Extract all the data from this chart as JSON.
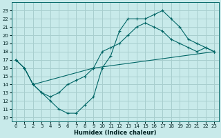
{
  "xlabel": "Humidex (Indice chaleur)",
  "bg_color": "#c8eaea",
  "grid_color": "#a8cece",
  "line_color": "#006666",
  "xlim": [
    -0.5,
    23.5
  ],
  "ylim": [
    9.5,
    24.0
  ],
  "xticks": [
    0,
    1,
    2,
    3,
    4,
    5,
    6,
    7,
    8,
    9,
    10,
    11,
    12,
    13,
    14,
    15,
    16,
    17,
    18,
    19,
    20,
    21,
    22,
    23
  ],
  "yticks": [
    10,
    11,
    12,
    13,
    14,
    15,
    16,
    17,
    18,
    19,
    20,
    21,
    22,
    23
  ],
  "line1_x": [
    0,
    1,
    2,
    3,
    4,
    5,
    6,
    7,
    8,
    9,
    10,
    11,
    12,
    13,
    14,
    15,
    16,
    17,
    18,
    19,
    20,
    21,
    22,
    23
  ],
  "line1_y": [
    17,
    16,
    14,
    13,
    12,
    11,
    10.5,
    10.5,
    11.5,
    12.5,
    16.0,
    17.5,
    20.5,
    22,
    22,
    22,
    22.5,
    23,
    22,
    21,
    19.5,
    19,
    18.5,
    18
  ],
  "line2_x": [
    0,
    1,
    2,
    9,
    10,
    11,
    12,
    13,
    14,
    15,
    16,
    17,
    18,
    19,
    20,
    21,
    22,
    23
  ],
  "line2_y": [
    17,
    16,
    14,
    16,
    18,
    18.5,
    19,
    20,
    21,
    21.5,
    21,
    20.5,
    19.5,
    19,
    18.5,
    18,
    18.5,
    18
  ],
  "line3_x": [
    0,
    1,
    2,
    3,
    4,
    5,
    6,
    7,
    8,
    9,
    23
  ],
  "line3_y": [
    17,
    16,
    14,
    13,
    12.5,
    13,
    14,
    14.5,
    15,
    16,
    18
  ]
}
